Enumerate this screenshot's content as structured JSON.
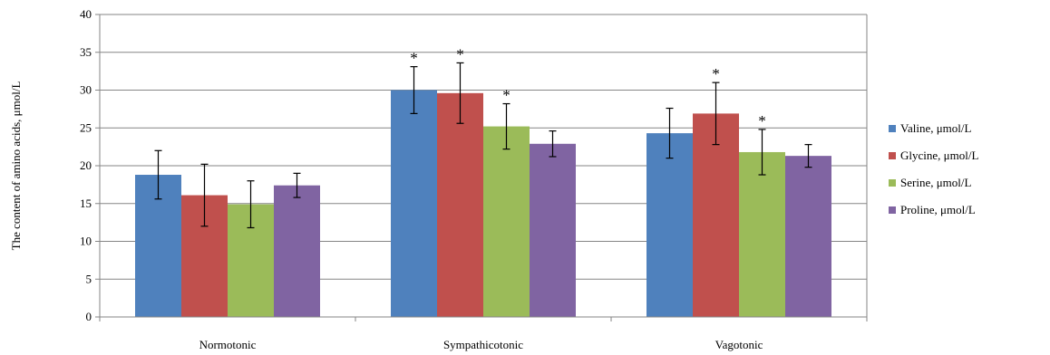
{
  "chart_data": {
    "type": "bar",
    "title": "",
    "xlabel": "",
    "ylabel": "The content of amino acids, μmol/L",
    "ylim": [
      0,
      40
    ],
    "ytick_step": 5,
    "yticks": [
      "0",
      "5",
      "10",
      "15",
      "20",
      "25",
      "30",
      "35",
      "40"
    ],
    "grid": true,
    "legend_position": "right",
    "categories": [
      "Normotonic",
      "Sympathicotonic",
      "Vagotonic"
    ],
    "series": [
      {
        "name": "Valine, μmol/L",
        "color": "#4F81BD",
        "values": [
          18.8,
          30.0,
          24.3
        ],
        "errors": [
          3.2,
          3.1,
          3.3
        ],
        "significant": [
          false,
          true,
          false
        ]
      },
      {
        "name": "Glycine, μmol/L",
        "color": "#C0504D",
        "values": [
          16.1,
          29.6,
          26.9
        ],
        "errors": [
          4.1,
          4.0,
          4.1
        ],
        "significant": [
          false,
          true,
          true
        ]
      },
      {
        "name": "Serine, μmol/L",
        "color": "#9BBB59",
        "values": [
          14.9,
          25.2,
          21.8
        ],
        "errors": [
          3.1,
          3.0,
          3.0
        ],
        "significant": [
          false,
          true,
          true
        ]
      },
      {
        "name": "Proline, μmol/L",
        "color": "#8064A2",
        "values": [
          17.4,
          22.9,
          21.3
        ],
        "errors": [
          1.6,
          1.7,
          1.5
        ],
        "significant": [
          false,
          false,
          false
        ]
      }
    ],
    "significance_marker": "*"
  }
}
